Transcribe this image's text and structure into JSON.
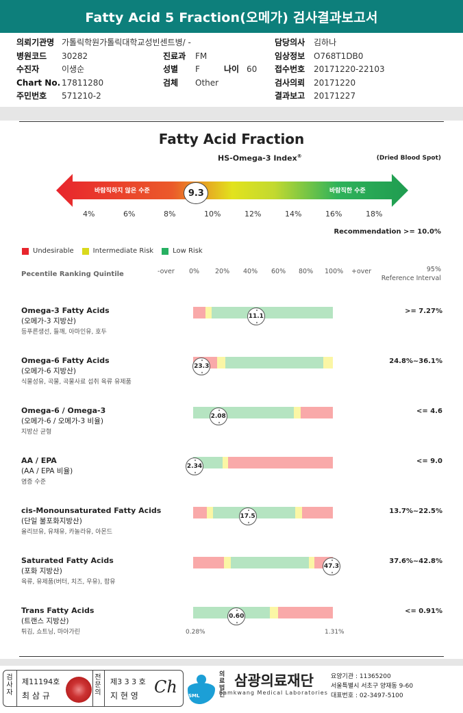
{
  "report": {
    "title": "Fatty Acid 5 Fraction(오메가) 검사결과보고서"
  },
  "info": {
    "left": [
      {
        "label": "의뢰기관명",
        "value": "가톨릭학원가톨릭대학교성빈센트병/ -"
      },
      {
        "label": "병원코드",
        "value": "30282"
      },
      {
        "label": "수진자",
        "value": "이생순"
      },
      {
        "label": "Chart No.",
        "value": "17811280"
      },
      {
        "label": "주민번호",
        "value": "571210-2"
      }
    ],
    "mid": [
      {
        "label": "진료과",
        "value": "FM"
      },
      {
        "label": "성별",
        "value": "F"
      },
      {
        "label": "검체",
        "value": "Other"
      }
    ],
    "age": {
      "label": "나이",
      "value": "60"
    },
    "right": [
      {
        "label": "담당의사",
        "value": "김하나"
      },
      {
        "label": "임상정보",
        "value": "O768T1DB0"
      },
      {
        "label": "접수번호",
        "value": "20171220-22103"
      },
      {
        "label": "검사의뢰",
        "value": "20171220"
      },
      {
        "label": "결과보고",
        "value": "20171227"
      }
    ]
  },
  "fraction": {
    "title": "Fatty Acid Fraction",
    "subtitle": "HS-Omega-3 Index",
    "reg": "®",
    "specimen": "(Dried Blood Spot)",
    "left_label": "바람직하지 않은 수준",
    "right_label": "바람직한 수준",
    "index_value": "9.3",
    "index_value_num": 9.3,
    "scale": [
      "4%",
      "6%",
      "8%",
      "10%",
      "12%",
      "14%",
      "16%",
      "18%"
    ],
    "recommendation": "Recommendation  >= 10.0%"
  },
  "legend": [
    {
      "label": "Undesirable",
      "color": "#e8252d"
    },
    {
      "label": "Intermediate Risk",
      "color": "#d9d91c"
    },
    {
      "label": "Low Risk",
      "color": "#27b062"
    }
  ],
  "ranking": {
    "title": "Pecentile Ranking Quintile",
    "ticks": [
      "-over",
      "0%",
      "20%",
      "40%",
      "60%",
      "80%",
      "100%",
      "+over"
    ],
    "ref_line1": "95%",
    "ref_line2": "Reference Interval"
  },
  "items": [
    {
      "name": "Omega-3 Fatty Acids",
      "korean": "(오메가-3 지방산)",
      "desc": "등푸른생선, 들깨, 아마인유, 호두",
      "value": "11.1",
      "reference": ">= 7.27%",
      "percentile": 45,
      "segments": [
        {
          "to": 9,
          "color": "red"
        },
        {
          "to": 13,
          "color": "yellow"
        },
        {
          "to": 100,
          "color": "green"
        }
      ]
    },
    {
      "name": "Omega-6 Fatty Acids",
      "korean": "(오메가-6 지방산)",
      "desc": "식물성유, 곡물, 곡물사료 섭취 육류 유제품",
      "value": "23.3",
      "reference": "24.8%~36.1%",
      "percentile": 6,
      "segments": [
        {
          "to": 17,
          "color": "red"
        },
        {
          "to": 23,
          "color": "yellow"
        },
        {
          "to": 93,
          "color": "green"
        },
        {
          "to": 100,
          "color": "yellow"
        }
      ]
    },
    {
      "name": "Omega-6 / Omega-3",
      "korean": "(오메가-6 / 오메가-3 비율)",
      "desc": "지방산 균형",
      "value": "2.08",
      "reference": "<= 4.6",
      "percentile": 18,
      "segments": [
        {
          "to": 72,
          "color": "green"
        },
        {
          "to": 77,
          "color": "yellow"
        },
        {
          "to": 100,
          "color": "red"
        }
      ]
    },
    {
      "name": "AA / EPA",
      "korean": "(AA / EPA 비율)",
      "desc": "염증 수준",
      "value": "2.34",
      "reference": "<= 9.0",
      "percentile": 1,
      "segments": [
        {
          "to": 21,
          "color": "green"
        },
        {
          "to": 25,
          "color": "yellow"
        },
        {
          "to": 100,
          "color": "red"
        }
      ]
    },
    {
      "name": "cis-Monounsaturated Fatty Acids",
      "korean": "(단일 불포화지방산)",
      "desc": "올리브유, 유채유, 카놀라유, 아몬드",
      "value": "17.5",
      "reference": "13.7%~22.5%",
      "percentile": 39,
      "segments": [
        {
          "to": 10,
          "color": "red"
        },
        {
          "to": 14,
          "color": "yellow"
        },
        {
          "to": 73,
          "color": "green"
        },
        {
          "to": 78,
          "color": "yellow"
        },
        {
          "to": 100,
          "color": "red"
        }
      ]
    },
    {
      "name": "Saturated Fatty Acids",
      "korean": "(포화 지방산)",
      "desc": "육류, 유제품(버터, 치즈, 우유), 팜유",
      "value": "47.3",
      "reference": "37.6%~42.8%",
      "percentile": 99,
      "segments": [
        {
          "to": 22,
          "color": "red"
        },
        {
          "to": 27,
          "color": "yellow"
        },
        {
          "to": 83,
          "color": "green"
        },
        {
          "to": 87,
          "color": "yellow"
        },
        {
          "to": 100,
          "color": "red"
        }
      ]
    },
    {
      "name": "Trans Fatty Acids",
      "korean": "(트랜스 지방산)",
      "desc": "튀김, 쇼트닝, 마아가린",
      "value": "0.60",
      "reference": "<= 0.91%",
      "percentile": 31,
      "segments": [
        {
          "to": 55,
          "color": "green"
        },
        {
          "to": 61,
          "color": "yellow"
        },
        {
          "to": 100,
          "color": "red"
        }
      ]
    }
  ],
  "trans_scale": {
    "min": "0.28%",
    "max": "1.31%"
  },
  "footer": {
    "box1_vlabel": "검사자",
    "box1_no": "제11194호",
    "box1_name": "최 삼 규",
    "box2_vlabel": "전문의",
    "box2_no": "제3 3 3 호",
    "box2_name": "지 현 영",
    "sig": "Ch",
    "logo_small1": "의료",
    "logo_small2": "법인",
    "logo_name": "삼광의료재단",
    "logo_sml": "SML",
    "logo_en": "Samkwang Medical Laboratories",
    "code": "요양기관 : 11365200",
    "address": "서울특별시 서초구 양재동 9-60",
    "phone": "대표번호 : 02-3497-5100"
  }
}
